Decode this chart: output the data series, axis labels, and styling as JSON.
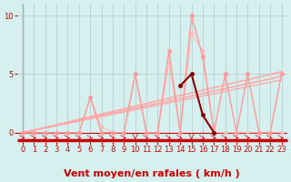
{
  "background_color": "#d6f0f0",
  "grid_color": "#b0c8c8",
  "xlabel": "Vent moyen/en rafales ( km/h )",
  "xlabel_color": "#cc0000",
  "xlabel_fontsize": 8,
  "yticks": [
    0,
    5,
    10
  ],
  "ylim": [
    -0.8,
    11
  ],
  "xlim": [
    -0.5,
    23.5
  ],
  "xticks": [
    0,
    1,
    2,
    3,
    4,
    5,
    6,
    7,
    8,
    9,
    10,
    11,
    12,
    13,
    14,
    15,
    16,
    17,
    18,
    19,
    20,
    21,
    22,
    23
  ],
  "tick_fontsize": 6,
  "tick_color": "#cc0000",
  "series_light": {
    "x": [
      0,
      1,
      2,
      3,
      4,
      5,
      6,
      7,
      8,
      9,
      10,
      11,
      12,
      13,
      14,
      15,
      16,
      17,
      18,
      19,
      20,
      21,
      22,
      23
    ],
    "y": [
      0,
      0,
      0,
      0,
      0,
      0,
      3,
      0,
      0,
      0,
      5,
      0,
      0,
      7,
      0,
      10,
      6.5,
      0,
      5,
      0,
      5,
      0,
      0,
      5
    ],
    "color": "#ff9999",
    "marker": "o",
    "markersize": 2.5,
    "linewidth": 1.0
  },
  "series_dark": {
    "x": [
      14,
      15,
      16,
      17
    ],
    "y": [
      4,
      5,
      1.5,
      0
    ],
    "color": "#880000",
    "marker": "o",
    "markersize": 2.5,
    "linewidth": 1.5
  },
  "trend_lines": [
    {
      "x": [
        0,
        23
      ],
      "y": [
        0,
        5.2
      ],
      "color": "#ffaaaa",
      "linewidth": 1.2
    },
    {
      "x": [
        0,
        23
      ],
      "y": [
        0,
        4.8
      ],
      "color": "#ffaaaa",
      "linewidth": 1.2
    },
    {
      "x": [
        0,
        23
      ],
      "y": [
        0,
        4.5
      ],
      "color": "#ffaaaa",
      "linewidth": 1.0
    }
  ],
  "series_light2": {
    "x": [
      0,
      1,
      2,
      3,
      4,
      5,
      6,
      7,
      8,
      9,
      10,
      11,
      12,
      13,
      14,
      15,
      16,
      17,
      18,
      19,
      20,
      21,
      22,
      23
    ],
    "y": [
      0,
      0,
      0,
      0,
      0,
      0,
      3,
      0.5,
      0,
      0,
      5,
      0,
      0,
      6,
      0,
      8.5,
      7,
      0,
      0,
      0,
      0,
      0,
      0,
      0
    ],
    "color": "#ffbbbb",
    "marker": "o",
    "markersize": 2.0,
    "linewidth": 0.8
  },
  "arrow_color": "#cc0000",
  "bottom_bar_color": "#cc0000"
}
